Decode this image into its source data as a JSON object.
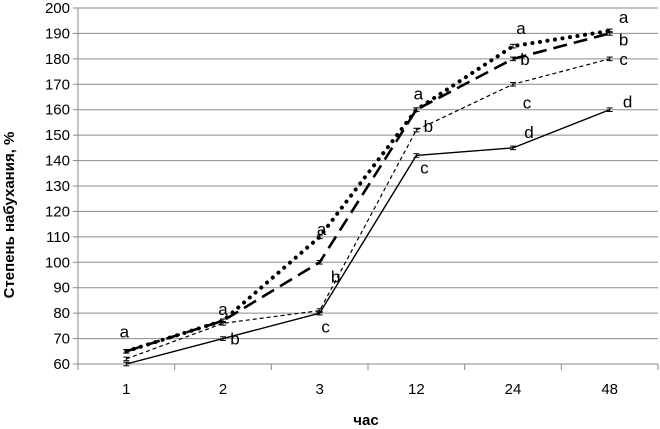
{
  "chart_data": {
    "type": "line",
    "categories": [
      "1",
      "2",
      "3",
      "12",
      "24",
      "48"
    ],
    "xlabel": "час",
    "ylabel": "Степень набухания, %",
    "ylim": [
      60,
      200
    ],
    "ytick_step": 10,
    "grid": "horizontal",
    "series": [
      {
        "style": "dotted-bold",
        "color": "#000000",
        "values": [
          65,
          77,
          110,
          160,
          185,
          191
        ],
        "labels": [
          "a",
          "a",
          "a",
          "a",
          "a",
          "a"
        ]
      },
      {
        "style": "dashed-long",
        "color": "#000000",
        "values": [
          65,
          77,
          100,
          160,
          180,
          190
        ],
        "labels": [
          "",
          "",
          "b",
          "",
          "b",
          "b"
        ]
      },
      {
        "style": "dashed-short",
        "color": "#000000",
        "values": [
          62,
          76,
          81,
          152,
          170,
          180
        ],
        "labels": [
          "",
          "",
          "c",
          "b",
          "c",
          "c"
        ]
      },
      {
        "style": "solid",
        "color": "#000000",
        "values": [
          60,
          70,
          80,
          142,
          145,
          160
        ],
        "labels": [
          "",
          "b",
          "",
          "c",
          "d",
          "d"
        ]
      }
    ]
  }
}
